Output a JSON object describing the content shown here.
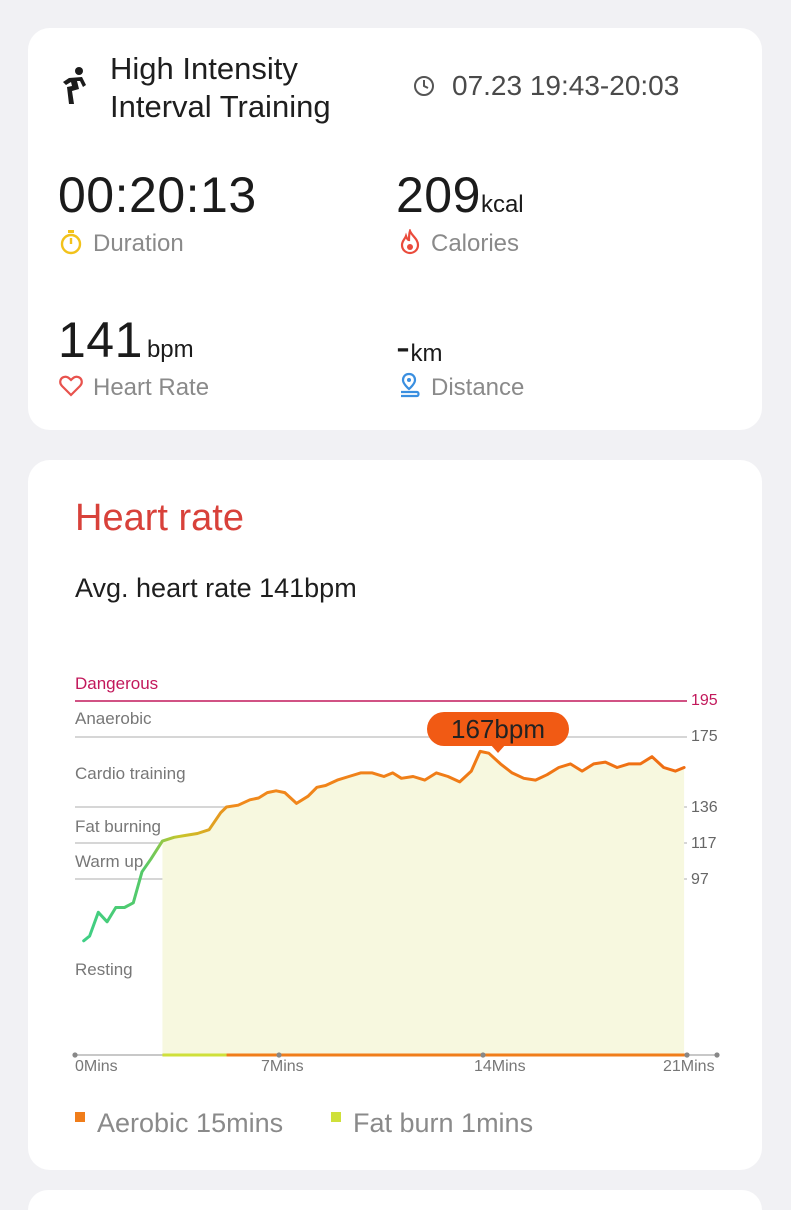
{
  "summary": {
    "activity_icon": "running-figure-icon",
    "title_line1": "High Intensity",
    "title_line2": "Interval Training",
    "clock_icon": "clock-icon",
    "time_range": "07.23 19:43-20:03",
    "duration": {
      "value": "00:20:13",
      "label": "Duration",
      "icon": "stopwatch-icon",
      "color": "#f2c21b"
    },
    "calories": {
      "value": "209",
      "unit": "kcal",
      "label": "Calories",
      "icon": "flame-icon",
      "color": "#ea4b3c"
    },
    "heart_rate": {
      "value": "141",
      "unit": "bpm",
      "label": "Heart Rate",
      "icon": "heart-icon",
      "color": "#e8524d"
    },
    "distance": {
      "value": "-",
      "unit": "km",
      "label": "Distance",
      "icon": "location-route-icon",
      "color": "#3a8fe0"
    }
  },
  "heart_rate_section": {
    "title": "Heart rate",
    "avg_text": "Avg. heart rate 141bpm",
    "tooltip": "167bpm"
  },
  "chart_data": {
    "type": "line",
    "x_unit": "minutes",
    "xlim": [
      0,
      21
    ],
    "x_ticks": [
      "0Mins",
      "7Mins",
      "14Mins",
      "21Mins"
    ],
    "zones": [
      {
        "name": "Dangerous",
        "threshold": 195,
        "color": "#c2185b"
      },
      {
        "name": "Anaerobic",
        "threshold": 175
      },
      {
        "name": "Cardio training",
        "threshold": 136
      },
      {
        "name": "Fat burning",
        "threshold": 117
      },
      {
        "name": "Warm up",
        "threshold": 97
      },
      {
        "name": "Resting"
      }
    ],
    "peak": {
      "label": "167bpm",
      "value": 167,
      "x": 14
    },
    "series": [
      {
        "x": [
          0.3,
          0.5,
          0.8,
          1.1,
          1.4,
          1.7,
          2.0,
          2.3,
          2.6,
          3.0,
          3.4,
          3.8,
          4.2,
          4.6,
          5.0,
          5.2,
          5.6,
          6.0,
          6.3,
          6.6,
          6.9,
          7.2,
          7.6,
          8.0,
          8.3,
          8.6,
          9.0,
          9.4,
          9.8,
          10.2,
          10.6,
          10.9,
          11.2,
          11.6,
          12.0,
          12.4,
          12.8,
          13.2,
          13.6,
          13.9,
          14.2,
          14.6,
          15.0,
          15.4,
          15.8,
          16.2,
          16.6,
          17.0,
          17.4,
          17.8,
          18.2,
          18.6,
          19.0,
          19.4,
          19.8,
          20.2,
          20.6,
          20.9
        ],
        "values": [
          84,
          85,
          90,
          88,
          91,
          91,
          92,
          101,
          108,
          118,
          120,
          121,
          122,
          124,
          133,
          136,
          137,
          140,
          141,
          144,
          145,
          144,
          138,
          142,
          147,
          148,
          151,
          153,
          155,
          155,
          153,
          155,
          152,
          153,
          151,
          155,
          153,
          150,
          156,
          167,
          166,
          160,
          155,
          152,
          151,
          154,
          158,
          160,
          156,
          160,
          161,
          158,
          160,
          160,
          164,
          158,
          156,
          158
        ]
      }
    ],
    "legend": [
      {
        "label": "Aerobic 15mins",
        "color": "#f07d1a"
      },
      {
        "label": "Fat burn 1mins",
        "color": "#cfe03a"
      }
    ],
    "grid": true
  }
}
